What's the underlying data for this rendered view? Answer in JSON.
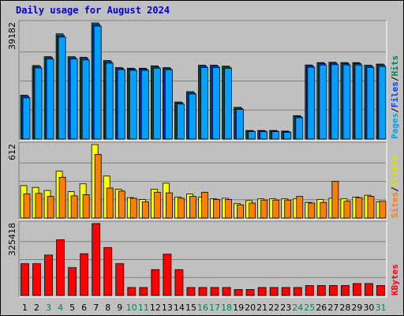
{
  "title": "Daily usage for August 2024",
  "chart_data": [
    {
      "type": "bar",
      "name_labels": [
        {
          "text": "Pages",
          "color": "#00a0ff"
        },
        {
          "text": "/",
          "color": "#000000"
        },
        {
          "text": "Files",
          "color": "#0040ff"
        },
        {
          "text": "/",
          "color": "#000000"
        },
        {
          "text": "Hits",
          "color": "#00805c"
        }
      ],
      "ymax_label": "39182",
      "ylim": [
        0,
        39182
      ],
      "categories": [
        "1",
        "2",
        "3",
        "4",
        "5",
        "6",
        "7",
        "8",
        "9",
        "10",
        "11",
        "12",
        "13",
        "14",
        "15",
        "16",
        "17",
        "18",
        "19",
        "20",
        "21",
        "22",
        "23",
        "24",
        "25",
        "26",
        "27",
        "28",
        "29",
        "30",
        "31"
      ],
      "series": [
        {
          "name": "Hits",
          "color": "#00805c",
          "values": [
            14800,
            24800,
            27800,
            35500,
            27800,
            27600,
            39182,
            26500,
            24100,
            23900,
            23900,
            24700,
            24100,
            12500,
            16000,
            24900,
            24900,
            24600,
            10700,
            2900,
            2900,
            2900,
            2700,
            7900,
            25000,
            25800,
            25900,
            25800,
            25800,
            24900,
            25300
          ]
        },
        {
          "name": "Files",
          "color": "#0040ff",
          "values": [
            14400,
            24500,
            27500,
            34900,
            27400,
            27200,
            38600,
            26100,
            23800,
            23600,
            23600,
            24300,
            23800,
            12200,
            15600,
            24600,
            24600,
            24300,
            10400,
            2700,
            2700,
            2700,
            2500,
            7600,
            24700,
            25500,
            25600,
            25500,
            25500,
            24600,
            25000
          ]
        },
        {
          "name": "Pages",
          "color": "#00a0ff",
          "values": [
            13900,
            24000,
            27000,
            34400,
            27000,
            26700,
            38100,
            25600,
            23400,
            23200,
            23200,
            23900,
            23400,
            11800,
            15200,
            24100,
            24100,
            23900,
            10000,
            2500,
            2500,
            2500,
            2300,
            7200,
            24200,
            25000,
            25100,
            25000,
            25000,
            24100,
            24500
          ]
        }
      ],
      "colors": {
        "pages": "#00a0ff",
        "files": "#0040ff",
        "hits": "#00805c"
      }
    },
    {
      "type": "bar",
      "name_labels": [
        {
          "text": "Sites",
          "color": "#ff8000"
        },
        {
          "text": "/",
          "color": "#000000"
        },
        {
          "text": "Visits",
          "color": "#e0e000"
        }
      ],
      "ymax_label": "612",
      "ylim": [
        0,
        612
      ],
      "categories": [
        "1",
        "2",
        "3",
        "4",
        "5",
        "6",
        "7",
        "8",
        "9",
        "10",
        "11",
        "12",
        "13",
        "14",
        "15",
        "16",
        "17",
        "18",
        "19",
        "20",
        "21",
        "22",
        "23",
        "24",
        "25",
        "26",
        "27",
        "28",
        "29",
        "30",
        "31"
      ],
      "series": [
        {
          "name": "Visits",
          "color": "#ffff00",
          "values": [
            270,
            255,
            230,
            390,
            220,
            285,
            612,
            350,
            240,
            170,
            155,
            240,
            290,
            175,
            200,
            175,
            160,
            165,
            120,
            145,
            160,
            160,
            160,
            160,
            130,
            155,
            165,
            160,
            175,
            190,
            135
          ]
        },
        {
          "name": "Sites",
          "color": "#ff8000",
          "values": [
            200,
            205,
            180,
            340,
            185,
            195,
            530,
            250,
            225,
            165,
            135,
            215,
            210,
            165,
            180,
            215,
            155,
            155,
            110,
            125,
            150,
            150,
            150,
            180,
            125,
            130,
            305,
            140,
            170,
            180,
            140
          ]
        }
      ]
    },
    {
      "type": "bar",
      "name_labels": [
        {
          "text": "KBytes",
          "color": "#ff0000"
        }
      ],
      "ymax_label": "325418",
      "ylim": [
        0,
        325418
      ],
      "categories": [
        "1",
        "2",
        "3",
        "4",
        "5",
        "6",
        "7",
        "8",
        "9",
        "10",
        "11",
        "12",
        "13",
        "14",
        "15",
        "16",
        "17",
        "18",
        "19",
        "20",
        "21",
        "22",
        "23",
        "24",
        "25",
        "26",
        "27",
        "28",
        "29",
        "30",
        "31"
      ],
      "series": [
        {
          "name": "KBytes",
          "color": "#ff0000",
          "values": [
            144000,
            144000,
            183000,
            252000,
            126000,
            189000,
            325418,
            217000,
            144000,
            36000,
            36000,
            117000,
            187000,
            117000,
            36000,
            36000,
            36000,
            36000,
            27000,
            27000,
            36000,
            36000,
            36000,
            36000,
            45000,
            45000,
            45000,
            45000,
            54000,
            54000,
            45000
          ]
        }
      ],
      "color": "#ff0000"
    }
  ],
  "day_colors": [
    "#000000",
    "#000000",
    "#00805c",
    "#00805c",
    "#000000",
    "#000000",
    "#000000",
    "#000000",
    "#000000",
    "#00805c",
    "#00805c",
    "#000000",
    "#000000",
    "#000000",
    "#000000",
    "#00805c",
    "#00805c",
    "#00805c",
    "#000000",
    "#000000",
    "#000000",
    "#000000",
    "#000000",
    "#00805c",
    "#00805c",
    "#000000",
    "#000000",
    "#000000",
    "#000000",
    "#000000",
    "#00805c"
  ]
}
